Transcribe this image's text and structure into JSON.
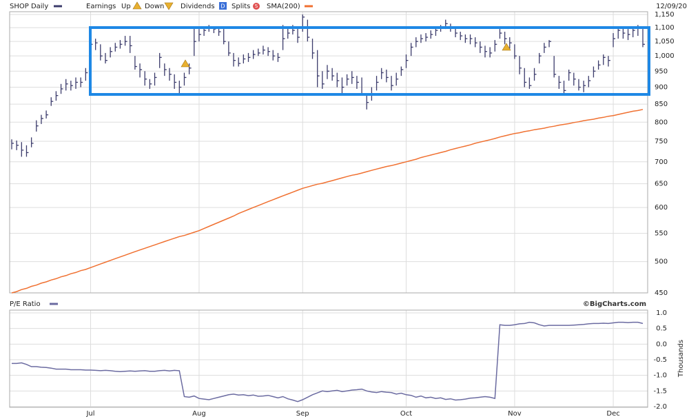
{
  "chart_data": [
    {
      "type": "ohlc",
      "legend_labels": [
        "Earnings",
        "Up",
        "Down",
        "Dividends",
        "Splits"
      ],
      "date": "12/09/20",
      "log_scale": true,
      "grid": true,
      "ylim": [
        450,
        1150
      ],
      "yticks": [
        450,
        500,
        550,
        600,
        650,
        700,
        750,
        800,
        850,
        900,
        950,
        {
          "value": 1000,
          "label": "1,000"
        },
        {
          "value": 1050,
          "label": "1,050"
        },
        {
          "value": 1100,
          "label": "1,100"
        },
        {
          "value": 1150,
          "label": "1,150"
        }
      ],
      "series": [
        {
          "name": "SHOP Daily",
          "color": "#3b3b6b",
          "high": [
            755,
            752,
            748,
            740,
            760,
            805,
            820,
            832,
            870,
            888,
            910,
            925,
            920,
            930,
            930,
            960,
            1060,
            1060,
            1040,
            1010,
            1030,
            1045,
            1055,
            1070,
            1070,
            1000,
            975,
            950,
            925,
            945,
            1010,
            975,
            960,
            940,
            920,
            945,
            975,
            1100,
            1095,
            1105,
            1110,
            1105,
            1100,
            1095,
            1050,
            1010,
            995,
            1005,
            1010,
            1020,
            1025,
            1035,
            1030,
            1020,
            1010,
            1110,
            1100,
            1110,
            1100,
            1150,
            1130,
            1060,
            1020,
            950,
            970,
            960,
            945,
            930,
            940,
            950,
            935,
            930,
            880,
            900,
            935,
            960,
            955,
            935,
            945,
            965,
            1005,
            1045,
            1065,
            1075,
            1080,
            1090,
            1100,
            1110,
            1130,
            1115,
            1105,
            1085,
            1075,
            1075,
            1065,
            1050,
            1035,
            1030,
            1055,
            1095,
            1085,
            1065,
            1040,
            1000,
            960,
            930,
            960,
            1010,
            1045,
            1055,
            1000,
            935,
            920,
            955,
            945,
            925,
            920,
            935,
            965,
            985,
            1005,
            1000,
            1080,
            1100,
            1100,
            1095,
            1100,
            1110,
            1095
          ],
          "low": [
            730,
            728,
            712,
            712,
            735,
            775,
            795,
            810,
            845,
            860,
            880,
            890,
            890,
            895,
            900,
            920,
            1010,
            1020,
            985,
            975,
            995,
            1015,
            1025,
            1035,
            1010,
            955,
            930,
            905,
            895,
            905,
            960,
            935,
            920,
            895,
            880,
            905,
            940,
            1000,
            1050,
            1070,
            1085,
            1080,
            1070,
            1040,
            1000,
            965,
            965,
            975,
            980,
            990,
            1000,
            1005,
            1000,
            985,
            980,
            1020,
            1060,
            1075,
            1045,
            1085,
            1050,
            990,
            900,
            895,
            925,
            920,
            900,
            880,
            905,
            910,
            895,
            875,
            835,
            860,
            890,
            925,
            915,
            890,
            905,
            935,
            960,
            1000,
            1030,
            1045,
            1050,
            1060,
            1070,
            1085,
            1095,
            1085,
            1065,
            1055,
            1045,
            1040,
            1030,
            1010,
            995,
            995,
            1015,
            1060,
            1040,
            1025,
            990,
            940,
            900,
            895,
            920,
            975,
            1010,
            1030,
            930,
            895,
            880,
            920,
            905,
            890,
            885,
            900,
            930,
            955,
            970,
            965,
            1030,
            1060,
            1060,
            1055,
            1065,
            1070,
            1030
          ],
          "close": [
            745,
            740,
            728,
            722,
            745,
            790,
            810,
            820,
            858,
            875,
            895,
            910,
            905,
            915,
            915,
            945,
            1040,
            1045,
            1000,
            985,
            1015,
            1030,
            1040,
            1050,
            1035,
            965,
            955,
            925,
            910,
            930,
            995,
            955,
            940,
            915,
            900,
            930,
            960,
            1050,
            1075,
            1090,
            1100,
            1095,
            1085,
            1050,
            1010,
            985,
            975,
            990,
            995,
            1005,
            1010,
            1020,
            1015,
            1000,
            995,
            1060,
            1080,
            1090,
            1065,
            1140,
            1065,
            1010,
            935,
            910,
            950,
            935,
            920,
            900,
            925,
            930,
            915,
            880,
            855,
            880,
            915,
            945,
            930,
            905,
            925,
            955,
            985,
            1030,
            1050,
            1060,
            1065,
            1075,
            1090,
            1100,
            1115,
            1100,
            1080,
            1070,
            1060,
            1060,
            1045,
            1030,
            1015,
            1010,
            1040,
            1080,
            1060,
            1045,
            1000,
            960,
            915,
            905,
            940,
            1000,
            1030,
            1050,
            940,
            915,
            890,
            945,
            925,
            900,
            905,
            920,
            950,
            970,
            995,
            985,
            1060,
            1090,
            1080,
            1075,
            1090,
            1100,
            1040
          ]
        },
        {
          "name": "SMA(200)",
          "color": "#f07030",
          "values": [
            450,
            452,
            455,
            457,
            460,
            462,
            465,
            467,
            470,
            472,
            475,
            477,
            480,
            482,
            485,
            487,
            490,
            493,
            496,
            499,
            502,
            505,
            508,
            511,
            514,
            517,
            520,
            523,
            526,
            529,
            532,
            535,
            538,
            541,
            544,
            546,
            549,
            552,
            555,
            559,
            563,
            567,
            571,
            575,
            579,
            583,
            588,
            592,
            596,
            600,
            604,
            608,
            612,
            616,
            620,
            624,
            628,
            632,
            636,
            640,
            643,
            646,
            649,
            651,
            654,
            657,
            660,
            663,
            666,
            669,
            671,
            674,
            677,
            680,
            683,
            686,
            689,
            691,
            694,
            697,
            700,
            703,
            706,
            710,
            713,
            716,
            719,
            722,
            725,
            729,
            732,
            735,
            738,
            741,
            745,
            748,
            751,
            754,
            757,
            761,
            764,
            767,
            770,
            772,
            775,
            777,
            780,
            782,
            784,
            787,
            789,
            792,
            794,
            796,
            799,
            801,
            804,
            806,
            808,
            811,
            813,
            816,
            818,
            821,
            824,
            827,
            830,
            832,
            835
          ]
        }
      ]
    },
    {
      "type": "line",
      "credit": "©BigCharts.com",
      "y_label": "Thousands",
      "grid": true,
      "categories": [
        null,
        null,
        null,
        null,
        null,
        null,
        null,
        null,
        null,
        null,
        null,
        null,
        null,
        null,
        null,
        null,
        "Jul",
        null,
        null,
        null,
        null,
        null,
        null,
        null,
        null,
        null,
        null,
        null,
        null,
        null,
        null,
        null,
        null,
        null,
        null,
        null,
        null,
        null,
        "Aug",
        null,
        null,
        null,
        null,
        null,
        null,
        null,
        null,
        null,
        null,
        null,
        null,
        null,
        null,
        null,
        null,
        null,
        null,
        null,
        null,
        "Sep",
        null,
        null,
        null,
        null,
        null,
        null,
        null,
        null,
        null,
        null,
        null,
        null,
        null,
        null,
        null,
        null,
        null,
        null,
        null,
        null,
        "Oct",
        null,
        null,
        null,
        null,
        null,
        null,
        null,
        null,
        null,
        null,
        null,
        null,
        null,
        null,
        null,
        null,
        null,
        null,
        null,
        null,
        null,
        "Nov",
        null,
        null,
        null,
        null,
        null,
        null,
        null,
        null,
        null,
        null,
        null,
        null,
        null,
        null,
        null,
        null,
        null,
        null,
        null,
        "Dec",
        null,
        null,
        null,
        null,
        null,
        null
      ],
      "ylim": [
        -2,
        1
      ],
      "yticks": [
        {
          "value": 1,
          "label": "1.0"
        },
        0.5,
        {
          "value": 0,
          "label": "0.0"
        },
        -0.5,
        {
          "value": -1,
          "label": "-1.0"
        },
        -1.5,
        {
          "value": -2,
          "label": "-2.0"
        }
      ],
      "series": [
        {
          "name": "P/E Ratio",
          "color": "#6a6aa0",
          "values": [
            -0.62,
            -0.62,
            -0.6,
            -0.65,
            -0.72,
            -0.72,
            -0.74,
            -0.75,
            -0.77,
            -0.8,
            -0.8,
            -0.8,
            -0.82,
            -0.82,
            -0.82,
            -0.83,
            -0.83,
            -0.84,
            -0.85,
            -0.84,
            -0.85,
            -0.87,
            -0.88,
            -0.87,
            -0.86,
            -0.87,
            -0.86,
            -0.85,
            -0.87,
            -0.87,
            -0.85,
            -0.84,
            -0.86,
            -0.84,
            -0.85,
            -1.68,
            -1.7,
            -1.66,
            -1.74,
            -1.76,
            -1.78,
            -1.74,
            -1.7,
            -1.66,
            -1.62,
            -1.6,
            -1.63,
            -1.62,
            -1.65,
            -1.63,
            -1.67,
            -1.66,
            -1.64,
            -1.68,
            -1.72,
            -1.68,
            -1.75,
            -1.79,
            -1.84,
            -1.78,
            -1.7,
            -1.62,
            -1.56,
            -1.5,
            -1.52,
            -1.5,
            -1.48,
            -1.52,
            -1.5,
            -1.47,
            -1.46,
            -1.44,
            -1.5,
            -1.53,
            -1.55,
            -1.52,
            -1.54,
            -1.55,
            -1.6,
            -1.57,
            -1.62,
            -1.64,
            -1.7,
            -1.66,
            -1.72,
            -1.7,
            -1.74,
            -1.72,
            -1.77,
            -1.75,
            -1.79,
            -1.78,
            -1.76,
            -1.73,
            -1.72,
            -1.7,
            -1.68,
            -1.7,
            -1.74,
            0.62,
            0.6,
            0.6,
            0.62,
            0.65,
            0.66,
            0.7,
            0.68,
            0.62,
            0.58,
            0.6,
            0.6,
            0.6,
            0.6,
            0.6,
            0.61,
            0.62,
            0.63,
            0.65,
            0.66,
            0.66,
            0.67,
            0.66,
            0.68,
            0.7,
            0.7,
            0.69,
            0.7,
            0.7,
            0.66
          ]
        }
      ]
    }
  ]
}
